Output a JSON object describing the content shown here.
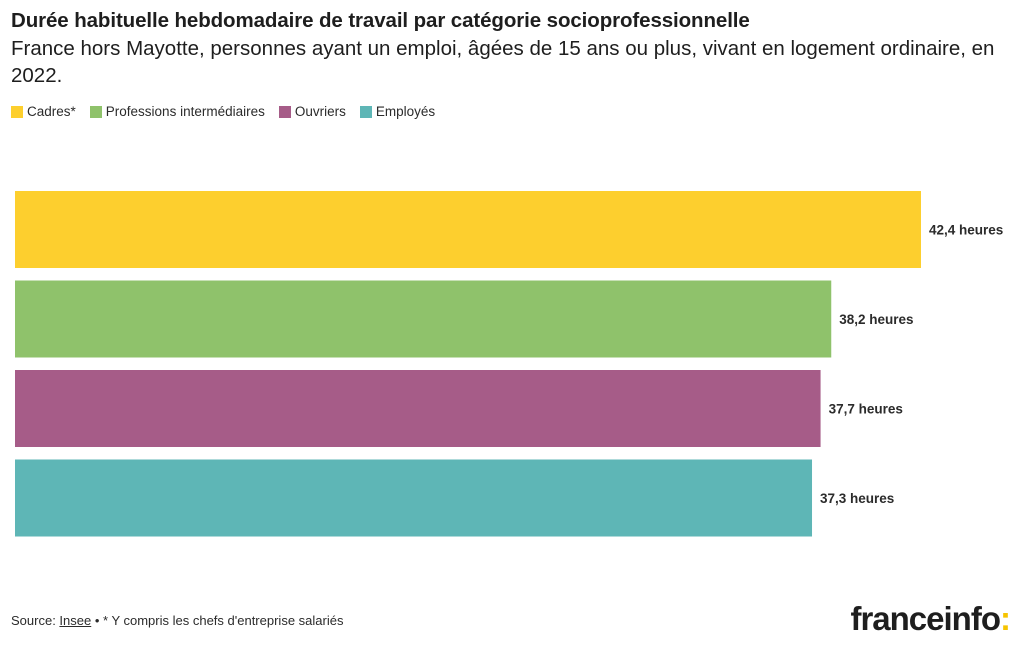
{
  "header": {
    "title": "Durée habituelle hebdomadaire de travail par catégorie socioprofessionnelle",
    "subtitle": "France hors Mayotte, personnes ayant un emploi, âgées de 15 ans ou plus, vivant en logement ordinaire, en 2022."
  },
  "legend": [
    {
      "label": "Cadres*",
      "color": "#fdcf2e"
    },
    {
      "label": "Professions intermédiaires",
      "color": "#8fc26b"
    },
    {
      "label": "Ouvriers",
      "color": "#a65c88"
    },
    {
      "label": "Employés",
      "color": "#5eb6b6"
    }
  ],
  "chart_data": {
    "type": "bar",
    "orientation": "horizontal",
    "categories": [
      "Cadres*",
      "Professions intermédiaires",
      "Ouvriers",
      "Employés"
    ],
    "values": [
      42.4,
      38.2,
      37.7,
      37.3
    ],
    "value_labels": [
      "42,4 heures",
      "38,2 heures",
      "37,7 heures",
      "37,3 heures"
    ],
    "colors": [
      "#fdcf2e",
      "#8fc26b",
      "#a65c88",
      "#5eb6b6"
    ],
    "unit": "heures",
    "legend_position": "top-left",
    "grid": false
  },
  "footer": {
    "source_prefix": "Source: ",
    "source_link": "Insee",
    "note": " • * Y compris les chefs d'entreprise salariés"
  },
  "brand": {
    "name": "franceinfo",
    "suffix": ":"
  }
}
